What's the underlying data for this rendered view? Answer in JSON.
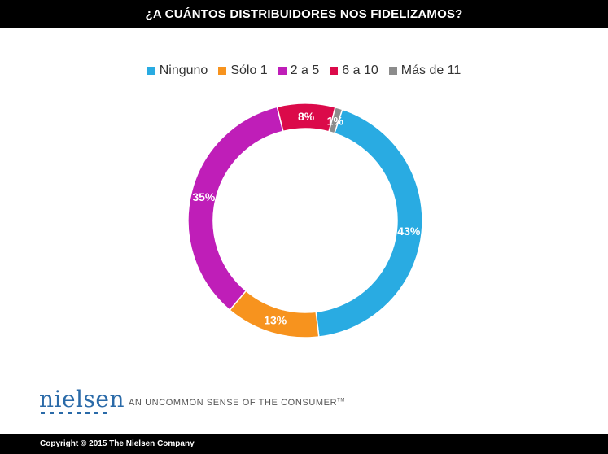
{
  "header": {
    "title": "¿A CUÁNTOS DISTRIBUIDORES NOS FIDELIZAMOS?"
  },
  "chart_data": {
    "type": "pie",
    "donut": true,
    "title": "¿A CUÁNTOS DISTRIBUIDORES NOS FIDELIZAMOS?",
    "legend_position": "top",
    "slices": [
      {
        "name": "Ninguno",
        "value": 43,
        "label": "43%",
        "color": "#29abe2"
      },
      {
        "name": "Sólo 1",
        "value": 13,
        "label": "13%",
        "color": "#f7931e"
      },
      {
        "name": "2 a 5",
        "value": 35,
        "label": "35%",
        "color": "#bf1eb8"
      },
      {
        "name": "6 a 10",
        "value": 8,
        "label": "8%",
        "color": "#db0a4a"
      },
      {
        "name": "Más de 11",
        "value": 1,
        "label": "1%",
        "color": "#8c8c8c"
      }
    ]
  },
  "brand": {
    "logo_text": "nielsen",
    "tagline": "AN UNCOMMON SENSE OF THE CONSUMER",
    "trademark": "TM",
    "color": "#2a6aa8"
  },
  "footer": {
    "copyright": "Copyright © 2015 The Nielsen Company"
  }
}
